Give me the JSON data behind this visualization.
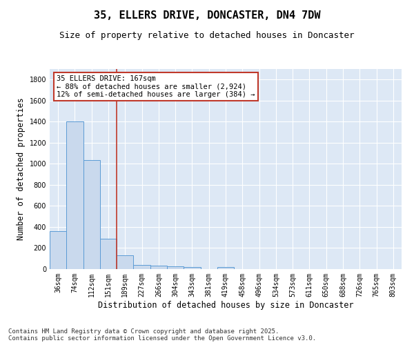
{
  "title": "35, ELLERS DRIVE, DONCASTER, DN4 7DW",
  "subtitle": "Size of property relative to detached houses in Doncaster",
  "xlabel": "Distribution of detached houses by size in Doncaster",
  "ylabel": "Number of detached properties",
  "categories": [
    "36sqm",
    "74sqm",
    "112sqm",
    "151sqm",
    "189sqm",
    "227sqm",
    "266sqm",
    "304sqm",
    "343sqm",
    "381sqm",
    "419sqm",
    "458sqm",
    "496sqm",
    "534sqm",
    "573sqm",
    "611sqm",
    "650sqm",
    "688sqm",
    "726sqm",
    "765sqm",
    "803sqm"
  ],
  "values": [
    360,
    1400,
    1035,
    290,
    130,
    42,
    35,
    25,
    18,
    0,
    18,
    0,
    0,
    0,
    0,
    0,
    0,
    0,
    0,
    0,
    0
  ],
  "bar_color": "#c9d9ed",
  "bar_edgecolor": "#5b9bd5",
  "bg_color": "#dde8f5",
  "grid_color": "#ffffff",
  "vline_x": 3.5,
  "vline_color": "#c0392b",
  "annotation_text": "35 ELLERS DRIVE: 167sqm\n← 88% of detached houses are smaller (2,924)\n12% of semi-detached houses are larger (384) →",
  "annotation_box_color": "#c0392b",
  "ylim": [
    0,
    1900
  ],
  "yticks": [
    0,
    200,
    400,
    600,
    800,
    1000,
    1200,
    1400,
    1600,
    1800
  ],
  "footnote": "Contains HM Land Registry data © Crown copyright and database right 2025.\nContains public sector information licensed under the Open Government Licence v3.0.",
  "title_fontsize": 11,
  "subtitle_fontsize": 9,
  "xlabel_fontsize": 8.5,
  "ylabel_fontsize": 8.5,
  "tick_fontsize": 7,
  "annot_fontsize": 7.5,
  "footnote_fontsize": 6.5
}
